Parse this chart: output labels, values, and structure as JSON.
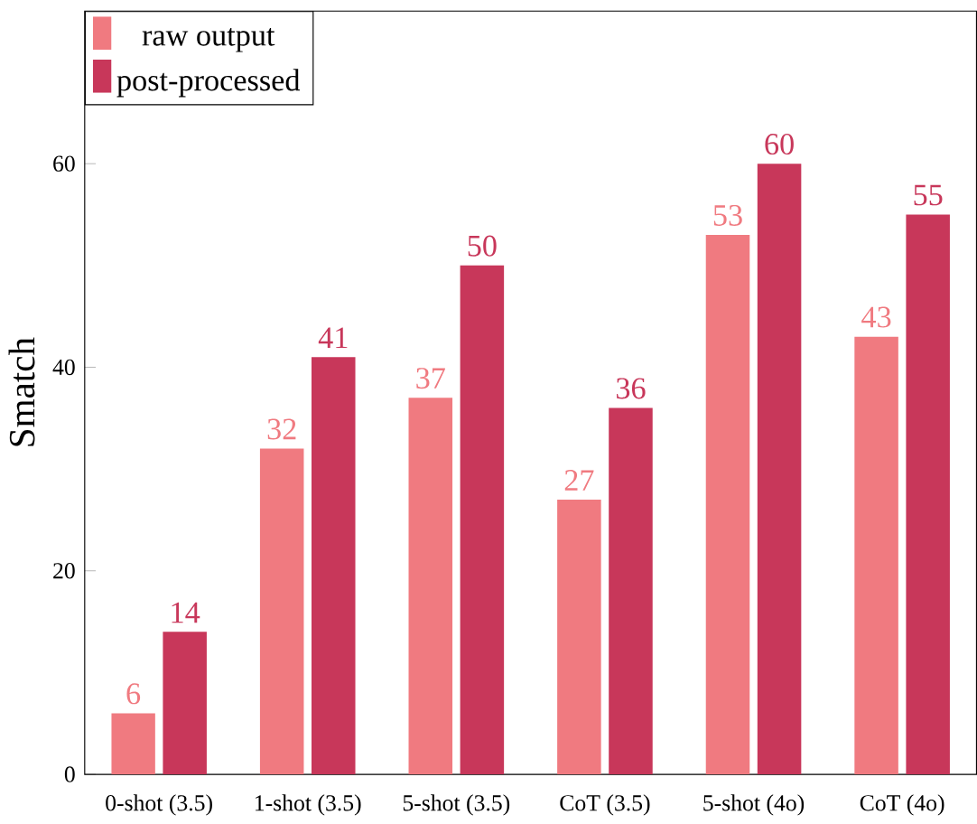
{
  "chart_data": {
    "type": "bar",
    "ylabel": "Smatch",
    "categories": [
      "0-shot (3.5)",
      "1-shot (3.5)",
      "5-shot (3.5)",
      "CoT (3.5)",
      "5-shot (4o)",
      "CoT (4o)"
    ],
    "series": [
      {
        "name": "raw output",
        "color": "#f07a80",
        "values": [
          6,
          32,
          37,
          27,
          53,
          43
        ]
      },
      {
        "name": "post-processed",
        "color": "#c8375a",
        "values": [
          14,
          41,
          50,
          36,
          60,
          55
        ]
      }
    ],
    "ylim": [
      0,
      75
    ],
    "yticks": [
      0,
      20,
      40,
      60
    ],
    "data_labels": true,
    "legend": "top left",
    "grid": false
  }
}
